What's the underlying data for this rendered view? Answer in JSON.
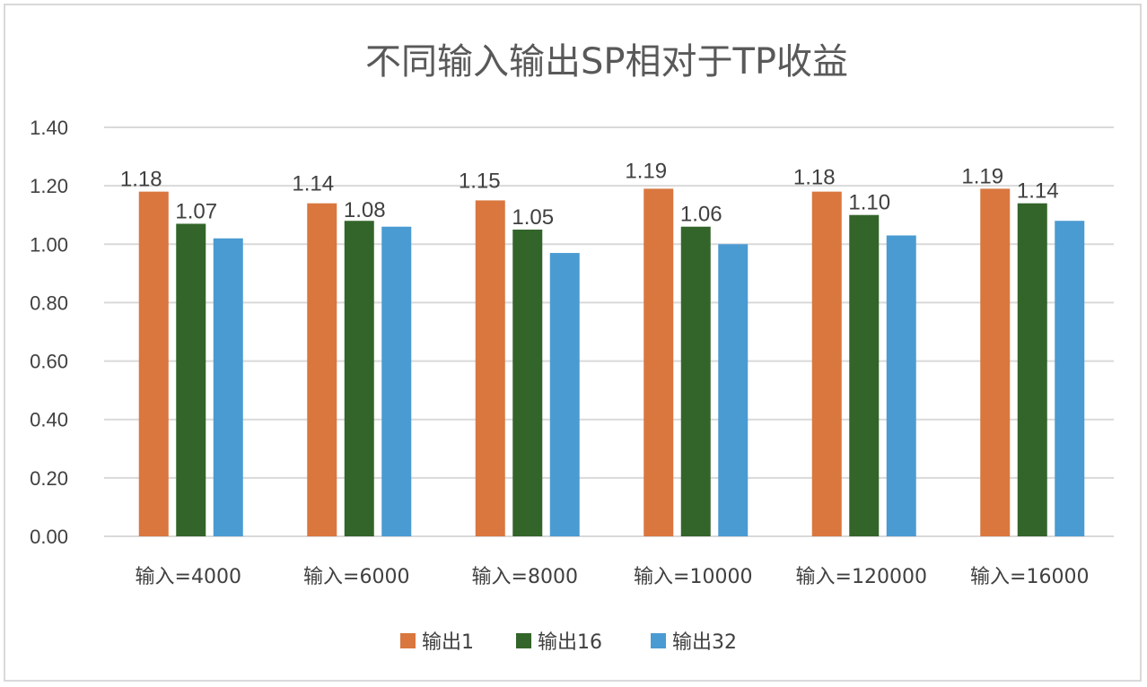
{
  "chart_data": {
    "type": "bar",
    "title": "不同输入输出SP相对于TP收益",
    "categories": [
      "输入=4000",
      "输入=6000",
      "输入=8000",
      "输入=10000",
      "输入=120000",
      "输入=16000"
    ],
    "series": [
      {
        "name": "输出1",
        "color": "#D9773F",
        "values": [
          1.18,
          1.14,
          1.15,
          1.19,
          1.18,
          1.19
        ],
        "labels": [
          "1.18",
          "1.14",
          "1.15",
          "1.19",
          "1.18",
          "1.19"
        ]
      },
      {
        "name": "输出16",
        "color": "#33652A",
        "values": [
          1.07,
          1.08,
          1.05,
          1.06,
          1.1,
          1.14
        ],
        "labels": [
          "1.07",
          "1.08",
          "1.05",
          "1.06",
          "1.10",
          "1.14"
        ]
      },
      {
        "name": "输出32",
        "color": "#4A9BD2",
        "values": [
          1.02,
          1.06,
          0.97,
          1.0,
          1.03,
          1.08
        ],
        "labels": []
      }
    ],
    "ylim": [
      0,
      1.4
    ],
    "yticks": [
      "0.00",
      "0.20",
      "0.40",
      "0.60",
      "0.80",
      "1.00",
      "1.20",
      "1.40"
    ],
    "grid": true,
    "legend": "bottom"
  }
}
